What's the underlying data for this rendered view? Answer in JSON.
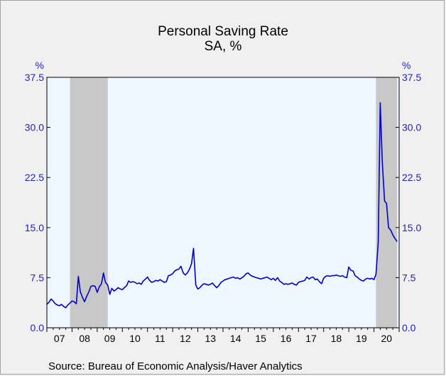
{
  "title": "Personal Saving Rate",
  "subtitle": "SA, %",
  "source": "Source:  Bureau of Economic Analysis/Haver Analytics",
  "colors": {
    "plot_bg": "#eef6ff",
    "recession": "#c8c8c8",
    "line": "#0000cc",
    "axis_text": "#1f1fbf"
  },
  "chart_data": {
    "type": "line",
    "title": "Personal Saving Rate",
    "subtitle": "SA, %",
    "left_axis_label": "%",
    "right_axis_label": "%",
    "ylim": [
      0,
      37.5
    ],
    "xlim": [
      2007.0,
      2021.0
    ],
    "yticks": [
      0,
      7.5,
      15,
      22.5,
      30,
      37.5
    ],
    "ytick_labels": [
      "0.0",
      "7.5",
      "15.0",
      "22.5",
      "30.0",
      "37.5"
    ],
    "x_labels": [
      {
        "year": 2007,
        "label": "07"
      },
      {
        "year": 2008,
        "label": "08"
      },
      {
        "year": 2009,
        "label": "09"
      },
      {
        "year": 2010,
        "label": "10"
      },
      {
        "year": 2011,
        "label": "11"
      },
      {
        "year": 2012,
        "label": "12"
      },
      {
        "year": 2013,
        "label": "13"
      },
      {
        "year": 2014,
        "label": "14"
      },
      {
        "year": 2015,
        "label": "15"
      },
      {
        "year": 2016,
        "label": "16"
      },
      {
        "year": 2017,
        "label": "17"
      },
      {
        "year": 2018,
        "label": "18"
      },
      {
        "year": 2019,
        "label": "19"
      },
      {
        "year": 2020,
        "label": "20"
      }
    ],
    "recessions": [
      {
        "start": 2007.92,
        "end": 2009.42
      },
      {
        "start": 2020.08,
        "end": 2020.92
      }
    ],
    "grid": false,
    "series": [
      {
        "points": [
          [
            2007.0,
            3.5
          ],
          [
            2007.08,
            3.8
          ],
          [
            2007.17,
            4.3
          ],
          [
            2007.25,
            4.0
          ],
          [
            2007.33,
            3.6
          ],
          [
            2007.42,
            3.4
          ],
          [
            2007.5,
            3.3
          ],
          [
            2007.58,
            3.5
          ],
          [
            2007.67,
            3.2
          ],
          [
            2007.75,
            3.0
          ],
          [
            2007.83,
            3.4
          ],
          [
            2007.92,
            3.7
          ],
          [
            2008.0,
            4.0
          ],
          [
            2008.08,
            3.9
          ],
          [
            2008.17,
            3.6
          ],
          [
            2008.25,
            7.7
          ],
          [
            2008.33,
            5.4
          ],
          [
            2008.42,
            4.5
          ],
          [
            2008.5,
            3.9
          ],
          [
            2008.58,
            4.7
          ],
          [
            2008.67,
            5.4
          ],
          [
            2008.75,
            6.2
          ],
          [
            2008.83,
            6.3
          ],
          [
            2008.92,
            6.2
          ],
          [
            2009.0,
            5.3
          ],
          [
            2009.08,
            6.1
          ],
          [
            2009.17,
            6.6
          ],
          [
            2009.25,
            8.2
          ],
          [
            2009.33,
            6.8
          ],
          [
            2009.42,
            6.4
          ],
          [
            2009.5,
            5.0
          ],
          [
            2009.58,
            5.9
          ],
          [
            2009.67,
            5.5
          ],
          [
            2009.75,
            5.7
          ],
          [
            2009.83,
            6.0
          ],
          [
            2009.92,
            5.8
          ],
          [
            2010.0,
            5.7
          ],
          [
            2010.08,
            6.0
          ],
          [
            2010.17,
            6.3
          ],
          [
            2010.25,
            7.0
          ],
          [
            2010.33,
            6.8
          ],
          [
            2010.42,
            6.9
          ],
          [
            2010.5,
            6.8
          ],
          [
            2010.58,
            6.6
          ],
          [
            2010.67,
            6.7
          ],
          [
            2010.75,
            6.5
          ],
          [
            2010.83,
            7.0
          ],
          [
            2010.92,
            7.3
          ],
          [
            2011.0,
            7.6
          ],
          [
            2011.08,
            7.1
          ],
          [
            2011.17,
            6.8
          ],
          [
            2011.25,
            6.9
          ],
          [
            2011.33,
            7.1
          ],
          [
            2011.42,
            7.0
          ],
          [
            2011.5,
            7.2
          ],
          [
            2011.58,
            7.0
          ],
          [
            2011.67,
            6.8
          ],
          [
            2011.75,
            6.9
          ],
          [
            2011.83,
            7.8
          ],
          [
            2011.92,
            7.9
          ],
          [
            2012.0,
            8.1
          ],
          [
            2012.08,
            8.5
          ],
          [
            2012.17,
            8.7
          ],
          [
            2012.25,
            8.8
          ],
          [
            2012.33,
            9.2
          ],
          [
            2012.42,
            8.2
          ],
          [
            2012.5,
            7.9
          ],
          [
            2012.58,
            8.2
          ],
          [
            2012.67,
            8.8
          ],
          [
            2012.75,
            9.6
          ],
          [
            2012.83,
            11.9
          ],
          [
            2012.92,
            6.4
          ],
          [
            2013.0,
            5.8
          ],
          [
            2013.08,
            6.0
          ],
          [
            2013.17,
            6.4
          ],
          [
            2013.25,
            6.6
          ],
          [
            2013.33,
            6.5
          ],
          [
            2013.42,
            6.4
          ],
          [
            2013.5,
            6.5
          ],
          [
            2013.58,
            6.7
          ],
          [
            2013.67,
            6.3
          ],
          [
            2013.75,
            6.0
          ],
          [
            2013.83,
            6.3
          ],
          [
            2013.92,
            6.8
          ],
          [
            2014.0,
            7.0
          ],
          [
            2014.08,
            7.2
          ],
          [
            2014.17,
            7.3
          ],
          [
            2014.25,
            7.4
          ],
          [
            2014.33,
            7.5
          ],
          [
            2014.42,
            7.6
          ],
          [
            2014.5,
            7.4
          ],
          [
            2014.58,
            7.5
          ],
          [
            2014.67,
            7.3
          ],
          [
            2014.75,
            7.5
          ],
          [
            2014.83,
            7.7
          ],
          [
            2014.92,
            8.1
          ],
          [
            2015.0,
            8.2
          ],
          [
            2015.08,
            7.9
          ],
          [
            2015.17,
            7.7
          ],
          [
            2015.25,
            7.6
          ],
          [
            2015.33,
            7.5
          ],
          [
            2015.42,
            7.4
          ],
          [
            2015.5,
            7.3
          ],
          [
            2015.58,
            7.4
          ],
          [
            2015.67,
            7.5
          ],
          [
            2015.75,
            7.6
          ],
          [
            2015.83,
            7.4
          ],
          [
            2015.92,
            7.2
          ],
          [
            2016.0,
            7.4
          ],
          [
            2016.08,
            7.1
          ],
          [
            2016.17,
            7.5
          ],
          [
            2016.25,
            7.0
          ],
          [
            2016.33,
            6.8
          ],
          [
            2016.42,
            6.5
          ],
          [
            2016.5,
            6.6
          ],
          [
            2016.58,
            6.5
          ],
          [
            2016.67,
            6.6
          ],
          [
            2016.75,
            6.7
          ],
          [
            2016.83,
            6.5
          ],
          [
            2016.92,
            6.4
          ],
          [
            2017.0,
            6.8
          ],
          [
            2017.08,
            6.9
          ],
          [
            2017.17,
            7.0
          ],
          [
            2017.25,
            7.1
          ],
          [
            2017.33,
            7.6
          ],
          [
            2017.42,
            7.3
          ],
          [
            2017.5,
            7.5
          ],
          [
            2017.58,
            7.6
          ],
          [
            2017.67,
            7.2
          ],
          [
            2017.75,
            7.3
          ],
          [
            2017.83,
            6.9
          ],
          [
            2017.92,
            6.6
          ],
          [
            2018.0,
            7.4
          ],
          [
            2018.08,
            7.7
          ],
          [
            2018.17,
            7.8
          ],
          [
            2018.25,
            7.7
          ],
          [
            2018.33,
            7.8
          ],
          [
            2018.42,
            7.8
          ],
          [
            2018.5,
            7.9
          ],
          [
            2018.58,
            7.8
          ],
          [
            2018.67,
            7.7
          ],
          [
            2018.75,
            7.8
          ],
          [
            2018.83,
            7.6
          ],
          [
            2018.92,
            7.5
          ],
          [
            2019.0,
            9.1
          ],
          [
            2019.08,
            8.6
          ],
          [
            2019.17,
            8.5
          ],
          [
            2019.25,
            7.8
          ],
          [
            2019.33,
            7.6
          ],
          [
            2019.42,
            7.3
          ],
          [
            2019.5,
            7.1
          ],
          [
            2019.58,
            7.0
          ],
          [
            2019.67,
            7.3
          ],
          [
            2019.75,
            7.4
          ],
          [
            2019.83,
            7.3
          ],
          [
            2019.92,
            7.4
          ],
          [
            2020.0,
            7.2
          ],
          [
            2020.08,
            8.0
          ],
          [
            2020.17,
            12.8
          ],
          [
            2020.25,
            33.7
          ],
          [
            2020.33,
            24.8
          ],
          [
            2020.42,
            19.0
          ],
          [
            2020.5,
            18.6
          ],
          [
            2020.58,
            15.0
          ],
          [
            2020.67,
            14.6
          ],
          [
            2020.75,
            13.9
          ],
          [
            2020.83,
            13.4
          ],
          [
            2020.92,
            12.9
          ]
        ]
      }
    ]
  }
}
